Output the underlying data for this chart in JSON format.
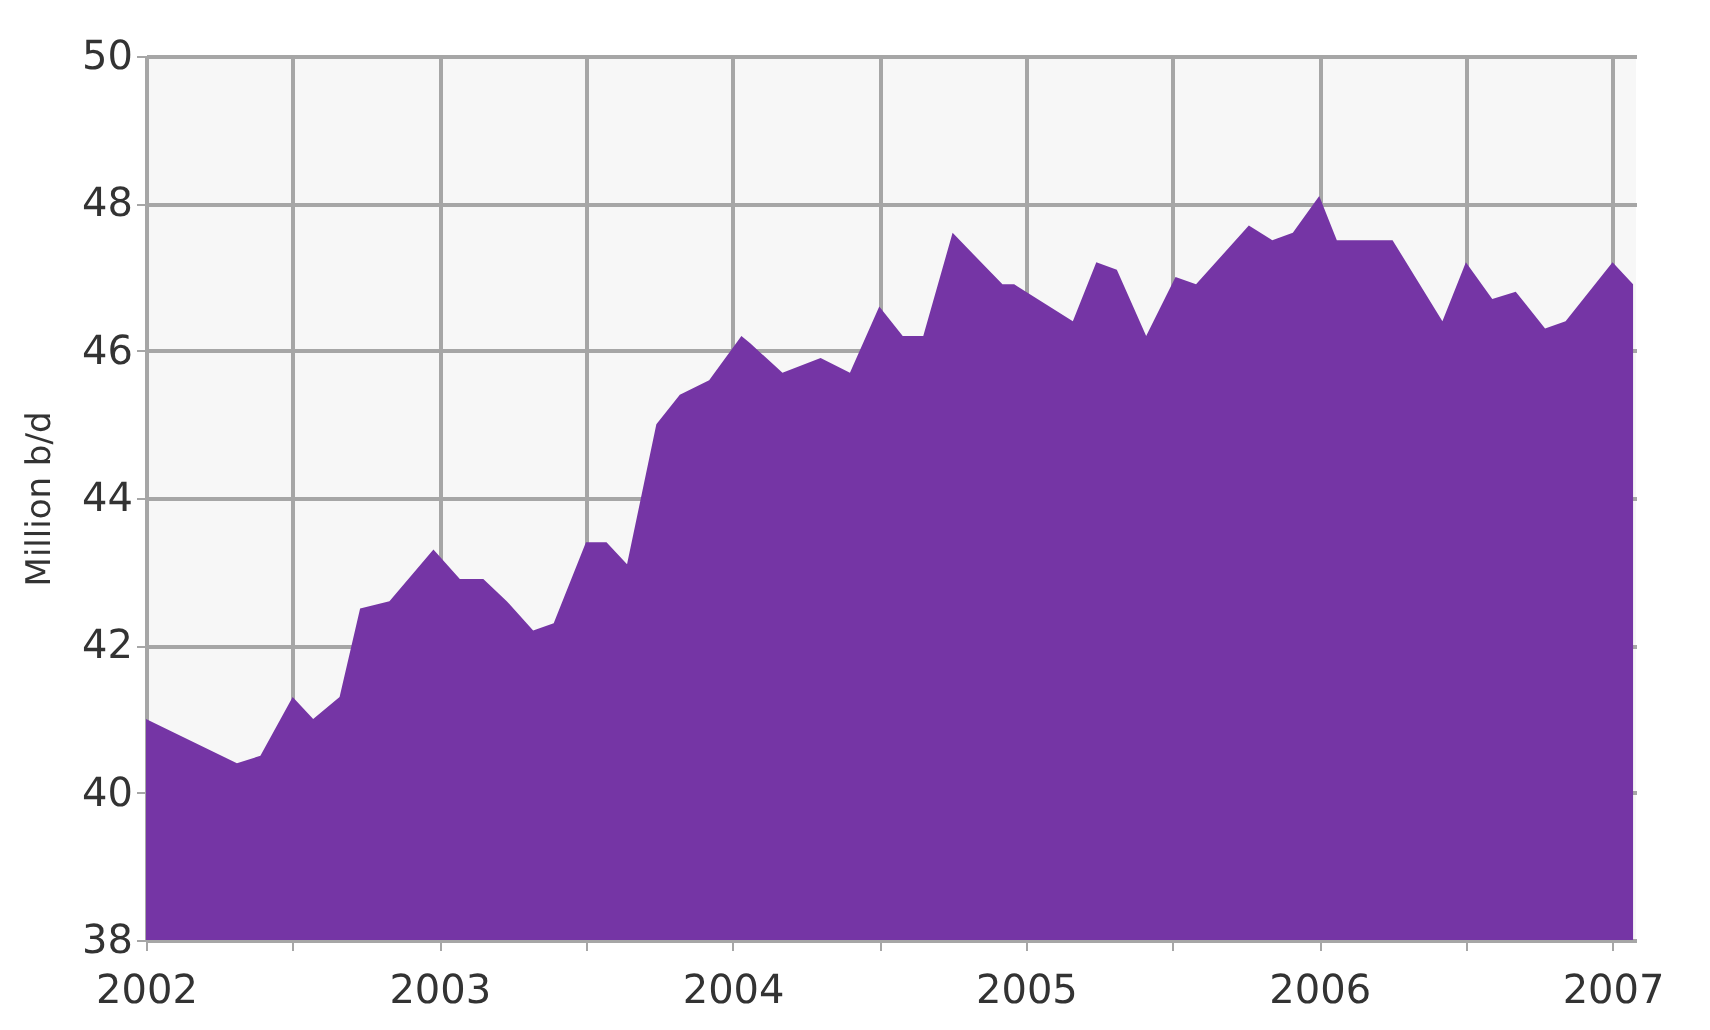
{
  "chart_data": {
    "type": "area",
    "ylabel": "Million b/d",
    "x": [
      2002.0,
      2002.31,
      2002.39,
      2002.5,
      2002.57,
      2002.66,
      2002.73,
      2002.83,
      2002.98,
      2003.07,
      2003.15,
      2003.23,
      2003.32,
      2003.39,
      2003.5,
      2003.57,
      2003.64,
      2003.74,
      2003.82,
      2003.92,
      2004.03,
      2004.06,
      2004.17,
      2004.3,
      2004.4,
      2004.5,
      2004.58,
      2004.65,
      2004.75,
      2004.92,
      2004.96,
      2005.16,
      2005.24,
      2005.31,
      2005.41,
      2005.51,
      2005.58,
      2005.76,
      2005.84,
      2005.91,
      2006.0,
      2006.06,
      2006.25,
      2006.42,
      2006.5,
      2006.59,
      2006.67,
      2006.77,
      2006.84,
      2007.0,
      2007.07
    ],
    "series": [
      {
        "color": "#7535a5",
        "values": [
          41.0,
          40.4,
          40.5,
          41.3,
          41.0,
          41.3,
          42.5,
          42.6,
          43.3,
          42.9,
          42.9,
          42.6,
          42.2,
          42.3,
          43.4,
          43.4,
          43.1,
          45.0,
          45.4,
          45.6,
          46.2,
          46.1,
          45.7,
          45.9,
          45.7,
          46.6,
          46.2,
          46.2,
          47.6,
          46.9,
          46.9,
          46.4,
          47.2,
          47.1,
          46.2,
          47.0,
          46.9,
          47.7,
          47.5,
          47.6,
          48.1,
          47.5,
          47.5,
          46.4,
          47.2,
          46.7,
          46.8,
          46.3,
          46.4,
          47.2,
          46.9
        ]
      }
    ],
    "xlim": [
      2002,
      2007.08
    ],
    "xticks": [
      2002,
      {
        "value": 2002.5,
        "label": null
      },
      2003,
      {
        "value": 2003.5,
        "label": null
      },
      2004,
      {
        "value": 2004.5,
        "label": null
      },
      2005,
      {
        "value": 2005.5,
        "label": null
      },
      2006,
      {
        "value": 2006.5,
        "label": null
      },
      2007
    ],
    "ylim": [
      38,
      50
    ],
    "yticks": [
      38,
      40,
      42,
      44,
      46,
      48,
      50
    ],
    "grid": true
  }
}
